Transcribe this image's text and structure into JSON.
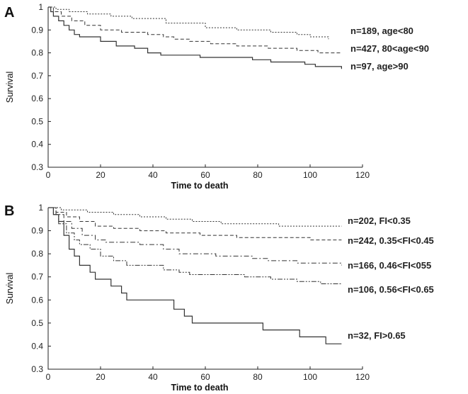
{
  "chart_data": [
    {
      "panel": "A",
      "type": "line",
      "title": "",
      "xlabel": "Time to death",
      "ylabel": "Survival",
      "xlim": [
        0,
        120
      ],
      "ylim": [
        0.3,
        1.0
      ],
      "xticks": [
        "0",
        "20",
        "40",
        "60",
        "80",
        "100",
        "120"
      ],
      "yticks": [
        "0.3",
        "0.4",
        "0.5",
        "0.6",
        "0.7",
        "0.8",
        "0.9",
        "1"
      ],
      "grid": false,
      "series": [
        {
          "name": "n=189, age<80",
          "style": "dotted",
          "points": [
            [
              0,
              1.0
            ],
            [
              3,
              0.99
            ],
            [
              8,
              0.98
            ],
            [
              15,
              0.97
            ],
            [
              24,
              0.96
            ],
            [
              32,
              0.95
            ],
            [
              45,
              0.93
            ],
            [
              60,
              0.91
            ],
            [
              72,
              0.9
            ],
            [
              85,
              0.89
            ],
            [
              95,
              0.88
            ],
            [
              100,
              0.87
            ],
            [
              107,
              0.86
            ]
          ]
        },
        {
          "name": "n=427, 80<age<90",
          "style": "dashed",
          "points": [
            [
              0,
              1.0
            ],
            [
              2,
              0.98
            ],
            [
              5,
              0.96
            ],
            [
              9,
              0.94
            ],
            [
              14,
              0.92
            ],
            [
              20,
              0.9
            ],
            [
              28,
              0.89
            ],
            [
              38,
              0.88
            ],
            [
              44,
              0.87
            ],
            [
              48,
              0.86
            ],
            [
              54,
              0.85
            ],
            [
              62,
              0.84
            ],
            [
              72,
              0.83
            ],
            [
              84,
              0.82
            ],
            [
              95,
              0.81
            ],
            [
              103,
              0.8
            ],
            [
              112,
              0.8
            ]
          ]
        },
        {
          "name": "n=97, age>90",
          "style": "solid",
          "points": [
            [
              0,
              1.0
            ],
            [
              1,
              0.98
            ],
            [
              2,
              0.96
            ],
            [
              4,
              0.94
            ],
            [
              6,
              0.92
            ],
            [
              8,
              0.9
            ],
            [
              10,
              0.88
            ],
            [
              12,
              0.87
            ],
            [
              20,
              0.85
            ],
            [
              26,
              0.83
            ],
            [
              33,
              0.82
            ],
            [
              38,
              0.8
            ],
            [
              43,
              0.79
            ],
            [
              58,
              0.78
            ],
            [
              78,
              0.77
            ],
            [
              85,
              0.76
            ],
            [
              98,
              0.75
            ],
            [
              102,
              0.74
            ],
            [
              112,
              0.73
            ]
          ]
        }
      ]
    },
    {
      "panel": "B",
      "type": "line",
      "title": "",
      "xlabel": "Time to death",
      "ylabel": "Survival",
      "xlim": [
        0,
        120
      ],
      "ylim": [
        0.3,
        1.0
      ],
      "xticks": [
        "0",
        "20",
        "40",
        "60",
        "80",
        "100",
        "120"
      ],
      "yticks": [
        "0.3",
        "0.4",
        "0.5",
        "0.6",
        "0.7",
        "0.8",
        "0.9",
        "1"
      ],
      "grid": false,
      "series": [
        {
          "name": "n=202, FI<0.35",
          "style": "dotted",
          "points": [
            [
              0,
              1.0
            ],
            [
              5,
              0.99
            ],
            [
              15,
              0.98
            ],
            [
              25,
              0.97
            ],
            [
              35,
              0.96
            ],
            [
              45,
              0.95
            ],
            [
              55,
              0.94
            ],
            [
              66,
              0.93
            ],
            [
              88,
              0.92
            ],
            [
              112,
              0.92
            ]
          ]
        },
        {
          "name": "n=242, 0.35<FI<0.45",
          "style": "dashed",
          "points": [
            [
              0,
              1.0
            ],
            [
              3,
              0.98
            ],
            [
              7,
              0.96
            ],
            [
              12,
              0.94
            ],
            [
              18,
              0.92
            ],
            [
              25,
              0.91
            ],
            [
              35,
              0.9
            ],
            [
              45,
              0.89
            ],
            [
              58,
              0.88
            ],
            [
              72,
              0.87
            ],
            [
              90,
              0.87
            ],
            [
              100,
              0.86
            ],
            [
              112,
              0.86
            ]
          ]
        },
        {
          "name": "n=166, 0.46<FI<055",
          "style": "dashdot",
          "points": [
            [
              0,
              1.0
            ],
            [
              3,
              0.97
            ],
            [
              6,
              0.94
            ],
            [
              9,
              0.91
            ],
            [
              13,
              0.88
            ],
            [
              18,
              0.86
            ],
            [
              22,
              0.85
            ],
            [
              35,
              0.84
            ],
            [
              44,
              0.82
            ],
            [
              50,
              0.8
            ],
            [
              64,
              0.79
            ],
            [
              78,
              0.78
            ],
            [
              84,
              0.77
            ],
            [
              95,
              0.76
            ],
            [
              112,
              0.75
            ]
          ]
        },
        {
          "name": "n=106, 0.56<FI<0.65",
          "style": "dashdotdot",
          "points": [
            [
              0,
              1.0
            ],
            [
              2,
              0.97
            ],
            [
              4,
              0.93
            ],
            [
              7,
              0.89
            ],
            [
              10,
              0.86
            ],
            [
              12,
              0.84
            ],
            [
              16,
              0.82
            ],
            [
              20,
              0.79
            ],
            [
              25,
              0.77
            ],
            [
              30,
              0.75
            ],
            [
              44,
              0.73
            ],
            [
              50,
              0.72
            ],
            [
              54,
              0.71
            ],
            [
              75,
              0.7
            ],
            [
              85,
              0.69
            ],
            [
              95,
              0.68
            ],
            [
              104,
              0.67
            ],
            [
              112,
              0.67
            ]
          ]
        },
        {
          "name": "n=32, FI>0.65",
          "style": "solid",
          "points": [
            [
              0,
              1.0
            ],
            [
              2,
              0.97
            ],
            [
              4,
              0.94
            ],
            [
              6,
              0.88
            ],
            [
              8,
              0.82
            ],
            [
              10,
              0.79
            ],
            [
              12,
              0.75
            ],
            [
              16,
              0.72
            ],
            [
              18,
              0.69
            ],
            [
              24,
              0.66
            ],
            [
              28,
              0.63
            ],
            [
              30,
              0.6
            ],
            [
              48,
              0.56
            ],
            [
              52,
              0.53
            ],
            [
              55,
              0.5
            ],
            [
              82,
              0.47
            ],
            [
              96,
              0.44
            ],
            [
              106,
              0.41
            ],
            [
              112,
              0.41
            ]
          ]
        }
      ]
    }
  ]
}
